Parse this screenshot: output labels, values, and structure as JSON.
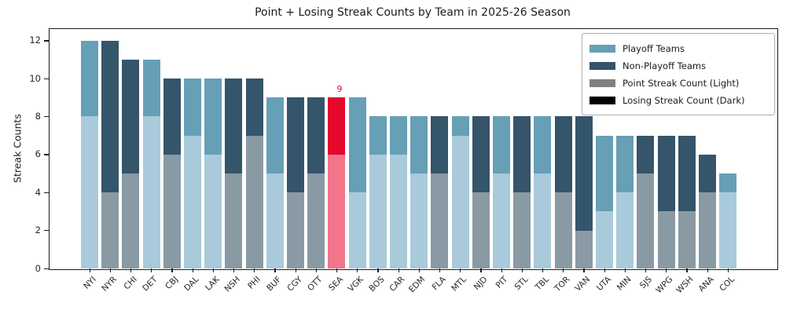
{
  "figure": {
    "title": "Point + Losing Streak Counts by Team in 2025-26 Season",
    "ylabel": "Streak Counts"
  },
  "chart_data": {
    "type": "bar",
    "stacked": true,
    "title": "Point + Losing Streak Counts by Team in 2025-26 Season",
    "xlabel": "",
    "ylabel": "Streak Counts",
    "ylim": [
      0,
      12.65
    ],
    "yticks": [
      0,
      2,
      4,
      6,
      8,
      10,
      12
    ],
    "grid": false,
    "legend_position": "upper right",
    "legend": [
      {
        "label": "Playoff Teams",
        "color": "#669FB6"
      },
      {
        "label": "Non-Playoff Teams",
        "color": "#34556A"
      },
      {
        "label": "Point Streak Count (Light)",
        "color": "#808080"
      },
      {
        "label": "Losing Streak Count (Dark)",
        "color": "#000000"
      }
    ],
    "palette": {
      "playoff": {
        "light": "#A9CADA",
        "dark": "#669FB6"
      },
      "non_playoff": {
        "light": "#8A9AA4",
        "dark": "#34556A"
      },
      "highlight": {
        "light": "#F3758B",
        "dark": "#E4082D"
      }
    },
    "annotation": {
      "team": "SEA",
      "text": "9",
      "color": "#D7112E"
    },
    "categories": [
      "NYI",
      "NYR",
      "CHI",
      "DET",
      "CBJ",
      "DAL",
      "LAK",
      "NSH",
      "PHI",
      "BUF",
      "CGY",
      "OTT",
      "SEA",
      "VGK",
      "BOS",
      "CAR",
      "EDM",
      "FLA",
      "MTL",
      "NJD",
      "PIT",
      "STL",
      "TBL",
      "TOR",
      "VAN",
      "UTA",
      "MIN",
      "SJS",
      "WPG",
      "WSH",
      "ANA",
      "COL"
    ],
    "series": [
      {
        "name": "Point Streak Count",
        "values": [
          8,
          4,
          5,
          8,
          6,
          7,
          6,
          5,
          7,
          5,
          4,
          5,
          6,
          4,
          6,
          6,
          5,
          5,
          7,
          4,
          5,
          4,
          5,
          4,
          2,
          3,
          4,
          5,
          3,
          3,
          4,
          4
        ]
      },
      {
        "name": "Losing Streak Count",
        "values": [
          4,
          8,
          6,
          3,
          4,
          3,
          4,
          5,
          3,
          4,
          5,
          4,
          3,
          5,
          2,
          2,
          3,
          3,
          1,
          4,
          3,
          4,
          3,
          4,
          6,
          4,
          3,
          2,
          4,
          4,
          2,
          1
        ]
      }
    ],
    "teams": [
      {
        "abbr": "NYI",
        "group": "playoff",
        "point_streak_count": 8,
        "losing_streak_count": 4,
        "total": 12
      },
      {
        "abbr": "NYR",
        "group": "non_playoff",
        "point_streak_count": 4,
        "losing_streak_count": 8,
        "total": 12
      },
      {
        "abbr": "CHI",
        "group": "non_playoff",
        "point_streak_count": 5,
        "losing_streak_count": 6,
        "total": 11
      },
      {
        "abbr": "DET",
        "group": "playoff",
        "point_streak_count": 8,
        "losing_streak_count": 3,
        "total": 11
      },
      {
        "abbr": "CBJ",
        "group": "non_playoff",
        "point_streak_count": 6,
        "losing_streak_count": 4,
        "total": 10
      },
      {
        "abbr": "DAL",
        "group": "playoff",
        "point_streak_count": 7,
        "losing_streak_count": 3,
        "total": 10
      },
      {
        "abbr": "LAK",
        "group": "playoff",
        "point_streak_count": 6,
        "losing_streak_count": 4,
        "total": 10
      },
      {
        "abbr": "NSH",
        "group": "non_playoff",
        "point_streak_count": 5,
        "losing_streak_count": 5,
        "total": 10
      },
      {
        "abbr": "PHI",
        "group": "non_playoff",
        "point_streak_count": 7,
        "losing_streak_count": 3,
        "total": 10
      },
      {
        "abbr": "BUF",
        "group": "playoff",
        "point_streak_count": 5,
        "losing_streak_count": 4,
        "total": 9
      },
      {
        "abbr": "CGY",
        "group": "non_playoff",
        "point_streak_count": 4,
        "losing_streak_count": 5,
        "total": 9
      },
      {
        "abbr": "OTT",
        "group": "non_playoff",
        "point_streak_count": 5,
        "losing_streak_count": 4,
        "total": 9
      },
      {
        "abbr": "SEA",
        "group": "highlight",
        "point_streak_count": 6,
        "losing_streak_count": 3,
        "total": 9
      },
      {
        "abbr": "VGK",
        "group": "playoff",
        "point_streak_count": 4,
        "losing_streak_count": 5,
        "total": 9
      },
      {
        "abbr": "BOS",
        "group": "playoff",
        "point_streak_count": 6,
        "losing_streak_count": 2,
        "total": 8
      },
      {
        "abbr": "CAR",
        "group": "playoff",
        "point_streak_count": 6,
        "losing_streak_count": 2,
        "total": 8
      },
      {
        "abbr": "EDM",
        "group": "playoff",
        "point_streak_count": 5,
        "losing_streak_count": 3,
        "total": 8
      },
      {
        "abbr": "FLA",
        "group": "non_playoff",
        "point_streak_count": 5,
        "losing_streak_count": 3,
        "total": 8
      },
      {
        "abbr": "MTL",
        "group": "playoff",
        "point_streak_count": 7,
        "losing_streak_count": 1,
        "total": 8
      },
      {
        "abbr": "NJD",
        "group": "non_playoff",
        "point_streak_count": 4,
        "losing_streak_count": 4,
        "total": 8
      },
      {
        "abbr": "PIT",
        "group": "playoff",
        "point_streak_count": 5,
        "losing_streak_count": 3,
        "total": 8
      },
      {
        "abbr": "STL",
        "group": "non_playoff",
        "point_streak_count": 4,
        "losing_streak_count": 4,
        "total": 8
      },
      {
        "abbr": "TBL",
        "group": "playoff",
        "point_streak_count": 5,
        "losing_streak_count": 3,
        "total": 8
      },
      {
        "abbr": "TOR",
        "group": "non_playoff",
        "point_streak_count": 4,
        "losing_streak_count": 4,
        "total": 8
      },
      {
        "abbr": "VAN",
        "group": "non_playoff",
        "point_streak_count": 2,
        "losing_streak_count": 6,
        "total": 8
      },
      {
        "abbr": "UTA",
        "group": "playoff",
        "point_streak_count": 3,
        "losing_streak_count": 4,
        "total": 7
      },
      {
        "abbr": "MIN",
        "group": "playoff",
        "point_streak_count": 4,
        "losing_streak_count": 3,
        "total": 7
      },
      {
        "abbr": "SJS",
        "group": "non_playoff",
        "point_streak_count": 5,
        "losing_streak_count": 2,
        "total": 7
      },
      {
        "abbr": "WPG",
        "group": "non_playoff",
        "point_streak_count": 3,
        "losing_streak_count": 4,
        "total": 7
      },
      {
        "abbr": "WSH",
        "group": "non_playoff",
        "point_streak_count": 3,
        "losing_streak_count": 4,
        "total": 7
      },
      {
        "abbr": "ANA",
        "group": "non_playoff",
        "point_streak_count": 4,
        "losing_streak_count": 2,
        "total": 6
      },
      {
        "abbr": "COL",
        "group": "playoff",
        "point_streak_count": 4,
        "losing_streak_count": 1,
        "total": 5
      }
    ]
  }
}
